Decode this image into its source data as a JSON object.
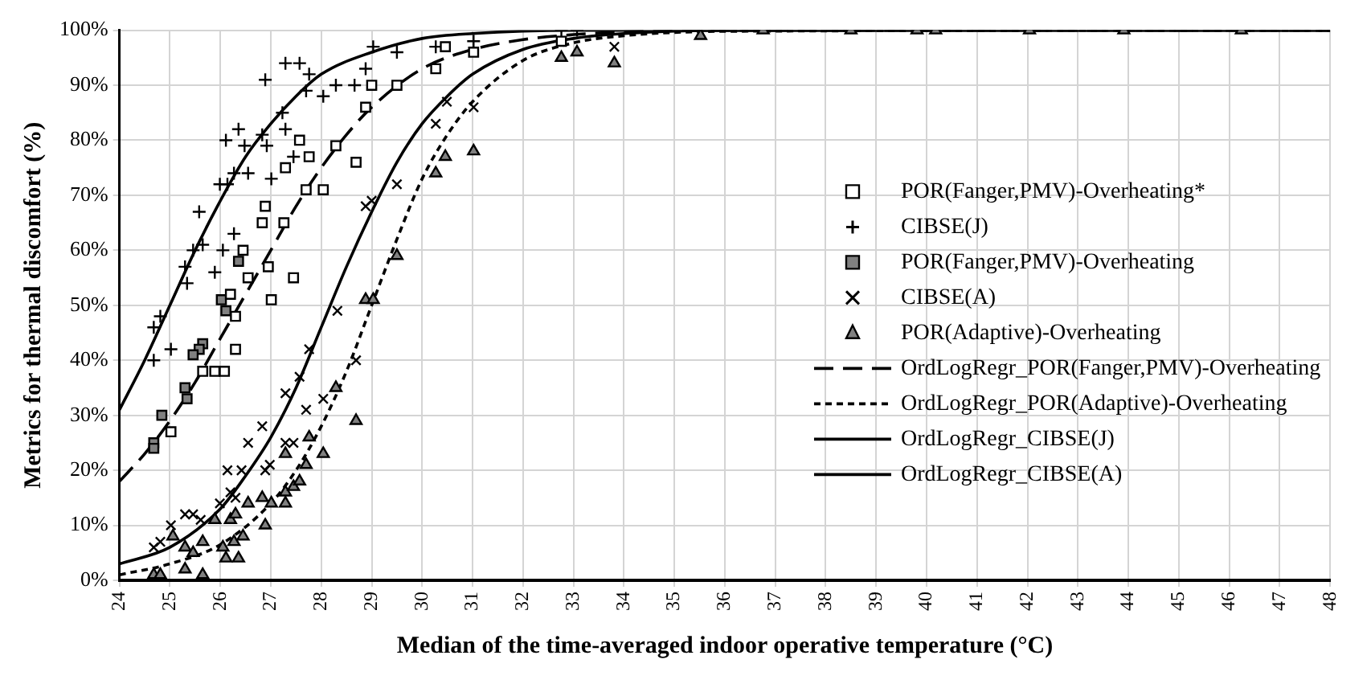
{
  "chart_data": {
    "type": "scatter",
    "xlabel": "Median of the time-averaged indoor operative temperature (°C)",
    "ylabel": "Metrics for thermal discomfort (%)",
    "xlim": [
      24,
      48
    ],
    "xticks": [
      24,
      25,
      26,
      27,
      28,
      29,
      30,
      31,
      32,
      33,
      34,
      35,
      36,
      37,
      38,
      39,
      40,
      41,
      42,
      43,
      44,
      45,
      46,
      47,
      48
    ],
    "ylim": [
      0,
      100
    ],
    "yticks": [
      {
        "value": 0,
        "label": "0%"
      },
      {
        "value": 10,
        "label": "10%"
      },
      {
        "value": 20,
        "label": "20%"
      },
      {
        "value": 30,
        "label": "30%"
      },
      {
        "value": 40,
        "label": "40%"
      },
      {
        "value": 50,
        "label": "50%"
      },
      {
        "value": 60,
        "label": "60%"
      },
      {
        "value": 70,
        "label": "70%"
      },
      {
        "value": 80,
        "label": "80%"
      },
      {
        "value": 90,
        "label": "90%"
      },
      {
        "value": 100,
        "label": "100%"
      }
    ],
    "grid": true,
    "legend": "right",
    "series": [
      {
        "name": "POR(Fanger,PMV)-Overheating*",
        "type": "scatter",
        "marker": "square",
        "color": "#ffffff",
        "x": [
          29.0,
          28.88,
          28.29,
          28.69,
          27.57,
          27.76,
          27.29,
          27.7,
          28.04,
          26.89,
          26.83,
          27.26,
          26.45,
          26.95,
          27.45,
          26.55,
          26.2,
          27.01,
          26.3,
          26.3,
          25.65,
          25.89,
          26.08,
          25.02,
          29.5,
          30.27,
          30.46,
          31.02,
          32.76
        ],
        "values": [
          90,
          86,
          79,
          76,
          80,
          77,
          75,
          71,
          71,
          68,
          65,
          65,
          60,
          57,
          55,
          55,
          52,
          51,
          48,
          42,
          38,
          38,
          38,
          27,
          90,
          93,
          97,
          96,
          98
        ]
      },
      {
        "name": "CIBSE(J)",
        "type": "scatter",
        "marker": "plus",
        "color": "#000000",
        "x": [
          24.81,
          25.34,
          25.3,
          25.46,
          25.65,
          25.58,
          25.89,
          26.05,
          26.27,
          25.99,
          26.14,
          26.27,
          26.55,
          26.48,
          26.11,
          26.36,
          26.83,
          26.92,
          27.01,
          27.29,
          27.45,
          27.23,
          26.89,
          27.29,
          27.57,
          27.76,
          27.7,
          28.04,
          28.29,
          28.66,
          28.88,
          29.03,
          24.68,
          25.02,
          24.68,
          29.5,
          31.02,
          32.76,
          33.07,
          30.27
        ],
        "values": [
          48,
          54,
          57,
          60,
          61,
          67,
          56,
          60,
          63,
          72,
          72,
          74,
          74,
          79,
          80,
          82,
          81,
          79,
          73,
          82,
          77,
          85,
          91,
          94,
          94,
          92,
          89,
          88,
          90,
          90,
          93,
          97,
          46,
          42,
          40,
          96,
          98,
          100,
          100,
          97
        ]
      },
      {
        "name": "POR(Fanger,PMV)-Overheating",
        "type": "scatter",
        "marker": "square",
        "color": "#808080",
        "x": [
          26.36,
          26.02,
          26.11,
          25.65,
          25.58,
          25.46,
          25.3,
          25.34,
          24.84,
          24.68,
          24.68
        ],
        "values": [
          58,
          51,
          49,
          43,
          42,
          41,
          35,
          33,
          30,
          25,
          24
        ]
      },
      {
        "name": "CIBSE(A)",
        "type": "scatter",
        "marker": "cross",
        "color": "#000000",
        "x": [
          24.68,
          24.81,
          25.02,
          25.3,
          25.46,
          25.61,
          25.99,
          26.2,
          26.3,
          26.14,
          26.42,
          26.83,
          26.55,
          26.89,
          26.98,
          27.29,
          27.29,
          27.45,
          27.57,
          27.7,
          27.76,
          28.04,
          28.32,
          28.69,
          28.88,
          29.0,
          29.5,
          30.27,
          30.49,
          31.02,
          33.81
        ],
        "values": [
          6,
          7,
          10,
          12,
          12,
          11,
          14,
          16,
          15,
          20,
          20,
          28,
          25,
          20,
          21,
          34,
          25,
          25,
          37,
          31,
          42,
          33,
          49,
          40,
          68,
          69,
          72,
          83,
          87,
          86,
          97
        ]
      },
      {
        "name": "POR(Adaptive)-Overheating",
        "type": "scatter",
        "marker": "triangle",
        "color": "#808080",
        "x": [
          24.68,
          24.81,
          25.06,
          25.3,
          25.3,
          25.46,
          25.65,
          25.65,
          25.89,
          26.05,
          26.11,
          26.2,
          26.27,
          26.3,
          26.45,
          26.36,
          26.55,
          26.83,
          26.89,
          27.01,
          27.29,
          27.29,
          27.45,
          27.57,
          27.29,
          27.76,
          27.7,
          28.04,
          28.29,
          28.69,
          28.88,
          29.03,
          29.5,
          30.27,
          30.46,
          31.02,
          32.76,
          33.07,
          33.81,
          35.52,
          36.76,
          38.5,
          39.81,
          40.18,
          42.04,
          43.91,
          46.24
        ],
        "values": [
          1,
          1,
          8,
          2,
          6,
          5,
          7,
          1,
          11,
          6,
          4,
          11,
          7,
          12,
          8,
          4,
          14,
          15,
          10,
          14,
          14,
          16,
          17,
          18,
          23,
          26,
          21,
          23,
          35,
          29,
          51,
          51,
          59,
          74,
          77,
          78,
          95,
          96,
          94,
          99,
          100,
          100,
          100,
          100,
          100,
          100,
          100
        ]
      },
      {
        "name": "OrdLogRegr_POR(Fanger,PMV)-Overheating",
        "type": "line",
        "line_style": "dashed",
        "marker": "none",
        "color": "#000000",
        "x": [
          24,
          24.5,
          25,
          25.5,
          26,
          26.5,
          27,
          27.5,
          28,
          28.5,
          29,
          30,
          31,
          32,
          33,
          34,
          36,
          48
        ],
        "values": [
          18,
          23,
          29,
          36,
          44,
          52,
          60,
          68,
          75,
          81,
          86,
          93,
          96.5,
          98.3,
          99.2,
          99.7,
          100,
          100
        ]
      },
      {
        "name": "OrdLogRegr_POR(Adaptive)-Overheating",
        "type": "line",
        "line_style": "dotted",
        "marker": "none",
        "color": "#000000",
        "x": [
          24,
          25,
          26,
          27,
          27.5,
          28,
          28.5,
          29,
          29.5,
          30,
          30.5,
          31,
          32,
          33,
          34,
          36,
          48
        ],
        "values": [
          1,
          3,
          6.5,
          14,
          20,
          28,
          38,
          50,
          62,
          73,
          81,
          87,
          94.5,
          97.7,
          99,
          99.8,
          100
        ]
      },
      {
        "name": "OrdLogRegr_CIBSE(J)",
        "type": "line",
        "line_style": "solid",
        "marker": "none",
        "color": "#000000",
        "x": [
          24,
          24.5,
          25,
          25.5,
          26,
          26.5,
          27,
          27.5,
          28,
          29,
          30,
          31,
          33,
          48
        ],
        "values": [
          31,
          40,
          50,
          60,
          69,
          77,
          83,
          88,
          92,
          96,
          98.5,
          99.4,
          100,
          100
        ]
      },
      {
        "name": "OrdLogRegr_CIBSE(A)",
        "type": "line",
        "line_style": "solid",
        "marker": "none",
        "color": "#000000",
        "x": [
          24,
          25,
          26,
          26.5,
          27,
          27.5,
          28,
          28.5,
          29,
          29.5,
          30,
          30.5,
          31,
          32,
          33,
          34,
          36,
          48
        ],
        "values": [
          3,
          6,
          13,
          19,
          26,
          35,
          46,
          57,
          67,
          76,
          83,
          88,
          92,
          96.5,
          98.5,
          99.4,
          100,
          100
        ]
      }
    ]
  }
}
